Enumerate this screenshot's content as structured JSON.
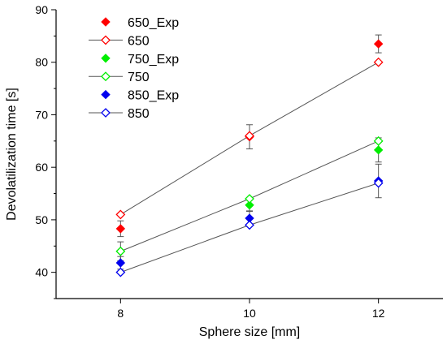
{
  "chart_data": {
    "type": "scatter",
    "xlabel": "Sphere size [mm]",
    "ylabel": "Devolatilization time [s]",
    "xlim": [
      7,
      13
    ],
    "ylim": [
      35,
      90
    ],
    "x_ticks": [
      8,
      10,
      12
    ],
    "y_ticks": [
      40,
      50,
      60,
      70,
      80,
      90
    ],
    "legend_position": "top-left",
    "series": [
      {
        "name": "650_Exp",
        "kind": "experiment",
        "color": "#ff0000",
        "marker": "diamond-filled",
        "x": [
          8,
          10,
          12
        ],
        "y": [
          48.3,
          65.8,
          83.5
        ],
        "err": [
          1.5,
          2.3,
          1.7
        ]
      },
      {
        "name": "650",
        "kind": "model",
        "color": "#ff0000",
        "marker": "diamond-open",
        "x": [
          8,
          10,
          12
        ],
        "y": [
          51,
          66,
          80
        ]
      },
      {
        "name": "750_Exp",
        "kind": "experiment",
        "color": "#00ee00",
        "marker": "diamond-filled",
        "x": [
          8,
          10,
          12
        ],
        "y": [
          44,
          52.8,
          63.3
        ],
        "err": [
          1.8,
          1.2,
          2.3
        ]
      },
      {
        "name": "750",
        "kind": "model",
        "color": "#00ee00",
        "marker": "diamond-open",
        "x": [
          8,
          10,
          12
        ],
        "y": [
          44,
          54,
          65
        ]
      },
      {
        "name": "850_Exp",
        "kind": "experiment",
        "color": "#0000ee",
        "marker": "diamond-filled",
        "x": [
          8,
          10,
          12
        ],
        "y": [
          41.8,
          50.3,
          57.4
        ],
        "err": [
          1.2,
          1.4,
          3.2
        ]
      },
      {
        "name": "850",
        "kind": "model",
        "color": "#0000ee",
        "marker": "diamond-open",
        "x": [
          8,
          10,
          12
        ],
        "y": [
          40,
          49,
          57
        ]
      }
    ]
  }
}
